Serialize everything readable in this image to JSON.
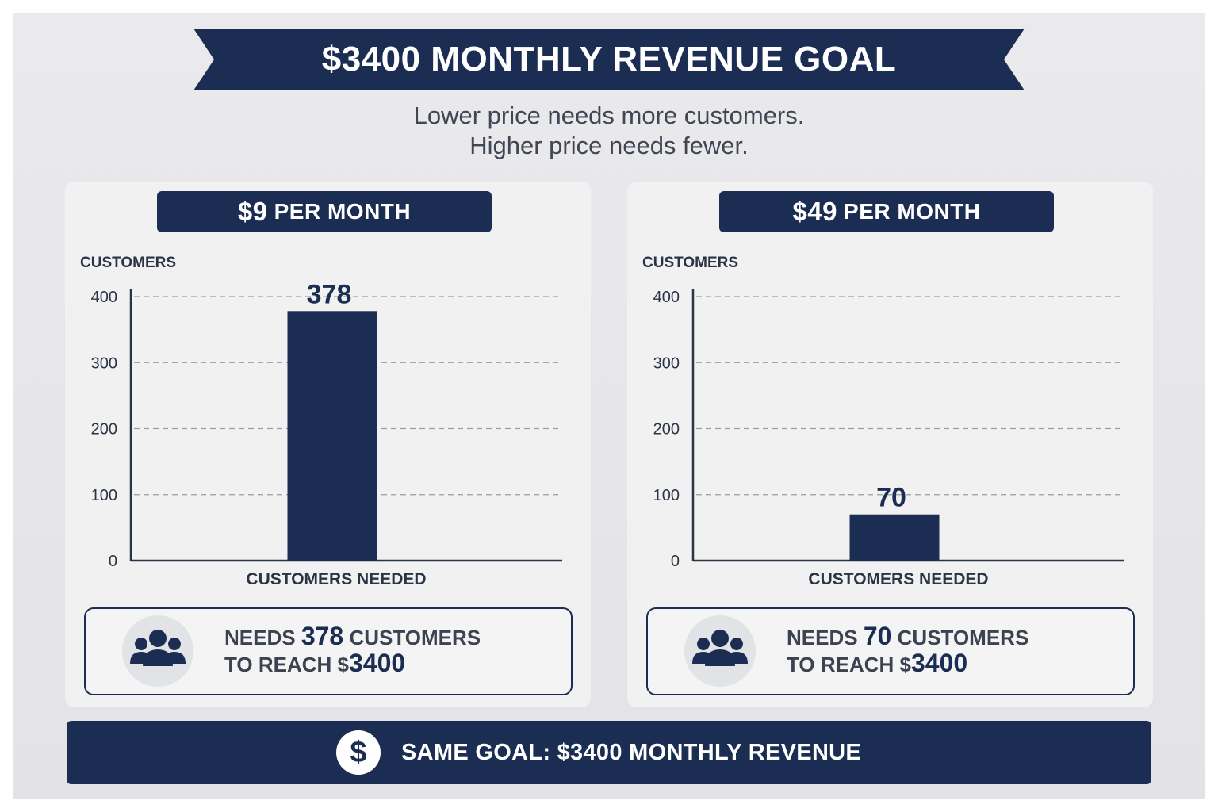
{
  "title": "$3400 MONTHLY REVENUE GOAL",
  "subtitle_lines": [
    "Lower price needs more customers.",
    "Higher price needs fewer."
  ],
  "colors": {
    "navy": "#1b2d52",
    "background": "#e6e6e9",
    "panel": "#f1f1f2"
  },
  "panels": [
    {
      "price_amount": "$9",
      "price_unit": "PER MONTH",
      "note_prefix": "NEEDS",
      "note_number": "378",
      "note_suffix": "CUSTOMERS",
      "note_line2_prefix": "TO REACH $",
      "note_line2_amount": "3400",
      "icon": "people-group-icon"
    },
    {
      "price_amount": "$49",
      "price_unit": "PER MONTH",
      "note_prefix": "NEEDS",
      "note_number": "70",
      "note_suffix": "CUSTOMERS",
      "note_line2_prefix": "TO REACH $",
      "note_line2_amount": "3400",
      "icon": "people-group-icon"
    }
  ],
  "footer": {
    "text": "SAME GOAL: $3400 MONTHLY REVENUE",
    "icon": "dollar-icon",
    "icon_glyph": "$"
  },
  "chart_data": [
    {
      "type": "bar",
      "title": "$9 PER MONTH",
      "categories": [
        "CUSTOMERS NEEDED"
      ],
      "values": [
        378
      ],
      "data_labels": [
        "378"
      ],
      "xlabel": "CUSTOMERS NEEDED",
      "ylabel": "CUSTOMERS",
      "ylim": [
        0,
        400
      ],
      "yticks": [
        0,
        100,
        200,
        300,
        400
      ],
      "grid": true,
      "color": "#1b2d52"
    },
    {
      "type": "bar",
      "title": "$49 PER MONTH",
      "categories": [
        "CUSTOMERS NEEDED"
      ],
      "values": [
        70
      ],
      "data_labels": [
        "70"
      ],
      "xlabel": "CUSTOMERS NEEDED",
      "ylabel": "CUSTOMERS",
      "ylim": [
        0,
        400
      ],
      "yticks": [
        0,
        100,
        200,
        300,
        400
      ],
      "grid": true,
      "color": "#1b2d52"
    }
  ]
}
